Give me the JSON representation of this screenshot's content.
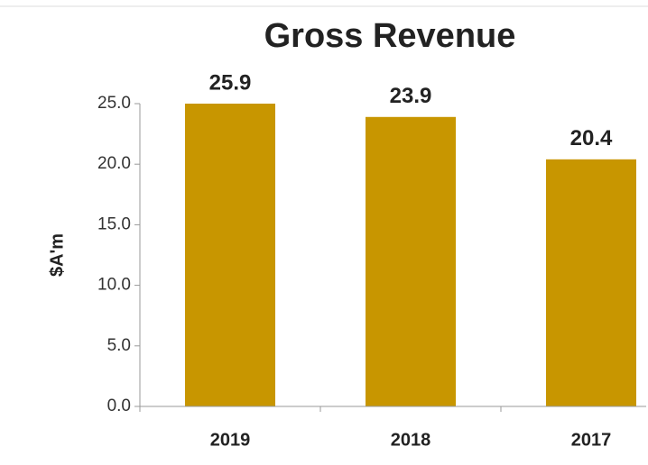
{
  "chart_data": {
    "type": "bar",
    "title": "Gross Revenue",
    "y_label": "$A'm",
    "categories": [
      "2019",
      "2018",
      "2017"
    ],
    "values": [
      25.9,
      23.9,
      20.4
    ],
    "color": "#c89600",
    "ylim": [
      0,
      25
    ],
    "yticks": [
      {
        "value": 0,
        "label": "0.0"
      },
      {
        "value": 5,
        "label": "5.0"
      },
      {
        "value": 10,
        "label": "10.0"
      },
      {
        "value": 15,
        "label": "15.0"
      },
      {
        "value": 20,
        "label": "20.0"
      },
      {
        "value": 25,
        "label": "25.0"
      }
    ]
  }
}
